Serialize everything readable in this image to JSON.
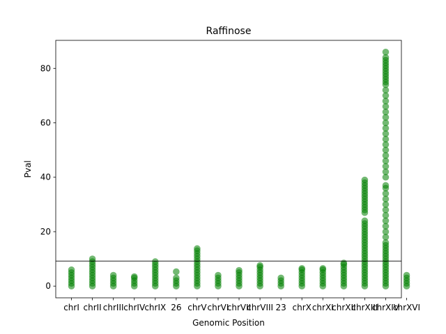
{
  "chart_data": {
    "type": "scatter",
    "title": "Raffinose",
    "xlabel": "Genomic Position",
    "ylabel": "Pval",
    "xlim": [
      -0.75,
      15.75
    ],
    "ylim": [
      -4.3,
      90.3
    ],
    "yticks": [
      0,
      20,
      40,
      60,
      80
    ],
    "grid": false,
    "legend": "none",
    "threshold": 9.2,
    "marker_color": "#008000",
    "threshold_color": "#000000",
    "categories": [
      "chrI",
      "chrII",
      "chrIII",
      "chrIV",
      "chrIX",
      "26",
      "chrV",
      "chrVI",
      "chrVII",
      "chrVIII",
      "23",
      "chrX",
      "chrXI",
      "chrXII",
      "chrXIII",
      "chrXIV",
      "chrXVI"
    ],
    "columns": [
      {
        "x": 0,
        "values": [
          0,
          1,
          2,
          3,
          4,
          5,
          6
        ]
      },
      {
        "x": 1,
        "values": [
          0,
          1,
          2,
          3,
          4,
          5,
          6,
          7,
          8,
          9,
          10
        ]
      },
      {
        "x": 2,
        "values": [
          0,
          1,
          2,
          3,
          4
        ]
      },
      {
        "x": 3,
        "values": [
          0,
          1,
          2,
          3,
          3.5
        ]
      },
      {
        "x": 4,
        "values": [
          0,
          1,
          2,
          3,
          4,
          5,
          6,
          7,
          8,
          9
        ]
      },
      {
        "x": 5,
        "values": [
          0,
          1,
          2,
          3,
          5.3
        ]
      },
      {
        "x": 6,
        "values": [
          0,
          1,
          2,
          3,
          4,
          5,
          6,
          7,
          8,
          9,
          10,
          11,
          12,
          13,
          13.8
        ]
      },
      {
        "x": 7,
        "values": [
          0,
          1,
          2,
          3,
          4
        ]
      },
      {
        "x": 8,
        "values": [
          0,
          1,
          2,
          3,
          4,
          5,
          5.8
        ]
      },
      {
        "x": 9,
        "values": [
          0,
          1,
          2,
          3,
          4,
          5,
          6,
          7,
          7.6
        ]
      },
      {
        "x": 10,
        "values": [
          0,
          1,
          2,
          3
        ]
      },
      {
        "x": 11,
        "values": [
          0,
          1,
          2,
          3,
          4,
          5,
          6,
          6.5
        ]
      },
      {
        "x": 12,
        "values": [
          0,
          1,
          2,
          3,
          4,
          5,
          6,
          6.5
        ]
      },
      {
        "x": 13,
        "values": [
          0,
          1,
          2,
          3,
          4,
          5,
          6,
          7,
          8,
          8.5
        ]
      },
      {
        "x": 14,
        "values": [
          0,
          1,
          2,
          3,
          4,
          5,
          6,
          7,
          8,
          9,
          10,
          11,
          12,
          13,
          14,
          15,
          16,
          17,
          18,
          19,
          20,
          21,
          22,
          23,
          24,
          27,
          28,
          29,
          30,
          31,
          32,
          33,
          34,
          35,
          36,
          37,
          38,
          39
        ]
      },
      {
        "x": 15,
        "values": [
          0,
          1,
          2,
          3,
          4,
          5,
          6,
          7,
          8,
          9,
          10,
          11,
          12,
          13,
          14,
          15,
          16,
          18,
          20,
          22,
          24,
          26,
          28,
          30,
          32,
          34,
          36,
          37,
          40,
          42,
          44,
          46,
          48,
          50,
          52,
          54,
          56,
          58,
          60,
          62,
          64,
          66,
          68,
          70,
          72,
          74,
          75,
          76,
          77,
          78,
          79,
          80,
          81,
          82,
          83,
          84,
          86
        ]
      },
      {
        "x": 16,
        "values": [
          0,
          1,
          2,
          3,
          4
        ]
      }
    ]
  }
}
